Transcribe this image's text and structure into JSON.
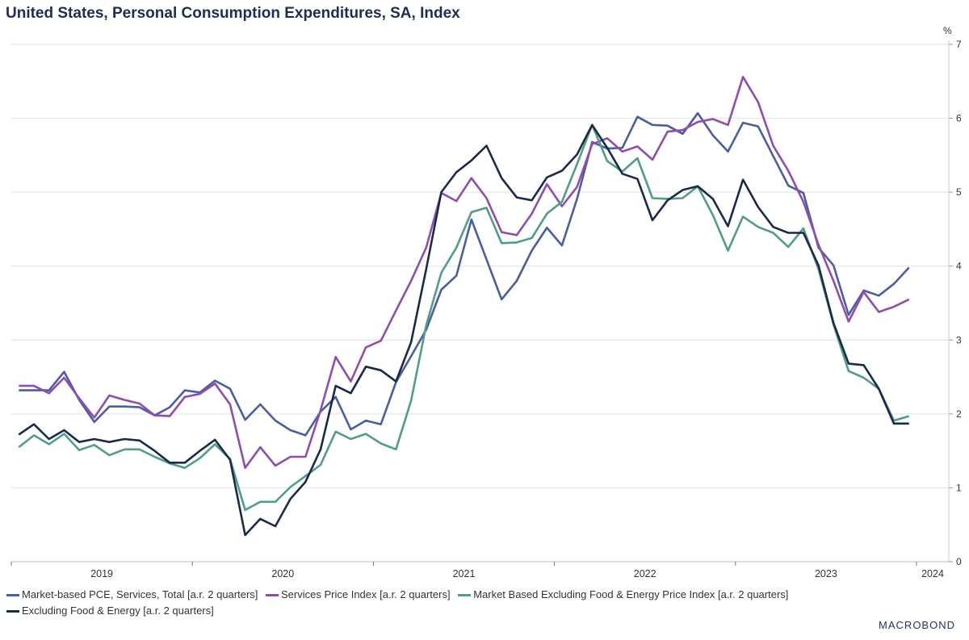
{
  "title": "United States, Personal Consumption Expenditures, SA, Index",
  "logo": "MACROBOND",
  "chart_data": {
    "type": "line",
    "title": "United States, Personal Consumption Expenditures, SA, Index",
    "ylabel": "%",
    "ylim": [
      0,
      7
    ],
    "yticks": [
      "0",
      "1",
      "2",
      "3",
      "4",
      "5",
      "6",
      "7"
    ],
    "xticks": [
      "2019",
      "2020",
      "2021",
      "2022",
      "2023",
      "2024"
    ],
    "x_start": "2019-01",
    "x_frequency": "monthly",
    "grid": true,
    "y_axis_side": "right",
    "legend_position": "bottom",
    "series": [
      {
        "name": "Market-based PCE, Services, Total [a.r. 2 quarters]",
        "color": "#4a5ea6",
        "values": [
          2.32,
          2.32,
          2.32,
          2.57,
          2.19,
          1.89,
          2.1,
          2.1,
          2.09,
          1.98,
          2.09,
          2.32,
          2.29,
          2.45,
          2.34,
          1.92,
          2.13,
          1.91,
          1.78,
          1.71,
          2.03,
          2.23,
          1.79,
          1.91,
          1.86,
          2.43,
          2.78,
          3.14,
          3.68,
          3.87,
          4.63,
          4.09,
          3.55,
          3.8,
          4.21,
          4.52,
          4.28,
          4.91,
          5.68,
          5.59,
          5.6,
          6.02,
          5.91,
          5.9,
          5.79,
          6.07,
          5.77,
          5.55,
          5.94,
          5.89,
          5.49,
          5.09,
          4.99,
          4.25,
          4.01,
          3.34,
          3.67,
          3.6,
          3.76,
          3.98
        ]
      },
      {
        "name": "Services Price Index [a.r. 2 quarters]",
        "color": "#8f4db1",
        "values": [
          2.38,
          2.38,
          2.28,
          2.49,
          2.21,
          1.95,
          2.25,
          2.19,
          2.14,
          1.98,
          1.97,
          2.23,
          2.27,
          2.41,
          2.13,
          1.27,
          1.55,
          1.3,
          1.42,
          1.42,
          2.05,
          2.77,
          2.44,
          2.9,
          2.99,
          3.4,
          3.8,
          4.25,
          4.99,
          4.88,
          5.19,
          4.92,
          4.46,
          4.42,
          4.71,
          5.11,
          4.81,
          5.07,
          5.65,
          5.73,
          5.55,
          5.62,
          5.44,
          5.82,
          5.84,
          5.95,
          5.99,
          5.91,
          6.56,
          6.22,
          5.63,
          5.29,
          4.87,
          4.29,
          3.8,
          3.25,
          3.65,
          3.38,
          3.45,
          3.55
        ]
      },
      {
        "name": "Market Based Excluding Food & Energy Price Index [a.r. 2 quarters]",
        "color": "#4f9e86",
        "values": [
          1.55,
          1.71,
          1.59,
          1.73,
          1.51,
          1.58,
          1.44,
          1.52,
          1.52,
          1.42,
          1.33,
          1.27,
          1.4,
          1.59,
          1.39,
          0.7,
          0.81,
          0.81,
          1.01,
          1.16,
          1.31,
          1.76,
          1.66,
          1.73,
          1.6,
          1.52,
          2.18,
          3.2,
          3.91,
          4.25,
          4.73,
          4.79,
          4.31,
          4.32,
          4.38,
          4.71,
          4.87,
          5.38,
          5.91,
          5.42,
          5.28,
          5.46,
          4.92,
          4.91,
          4.92,
          5.08,
          4.69,
          4.21,
          4.67,
          4.53,
          4.45,
          4.26,
          4.51,
          3.96,
          3.21,
          2.58,
          2.49,
          2.34,
          1.91,
          1.97
        ]
      },
      {
        "name": "Excluding Food & Energy [a.r. 2 quarters]",
        "color": "#1a2a4a",
        "values": [
          1.72,
          1.86,
          1.66,
          1.78,
          1.62,
          1.66,
          1.62,
          1.66,
          1.64,
          1.5,
          1.34,
          1.34,
          1.5,
          1.65,
          1.38,
          0.36,
          0.58,
          0.48,
          0.85,
          1.08,
          1.52,
          2.38,
          2.28,
          2.64,
          2.59,
          2.44,
          2.97,
          3.96,
          5.0,
          5.27,
          5.43,
          5.63,
          5.19,
          4.93,
          4.89,
          5.2,
          5.29,
          5.51,
          5.91,
          5.6,
          5.25,
          5.18,
          4.62,
          4.89,
          5.03,
          5.08,
          4.91,
          4.54,
          5.17,
          4.8,
          4.53,
          4.45,
          4.45,
          4.01,
          3.23,
          2.68,
          2.66,
          2.34,
          1.87,
          1.87
        ]
      }
    ]
  }
}
